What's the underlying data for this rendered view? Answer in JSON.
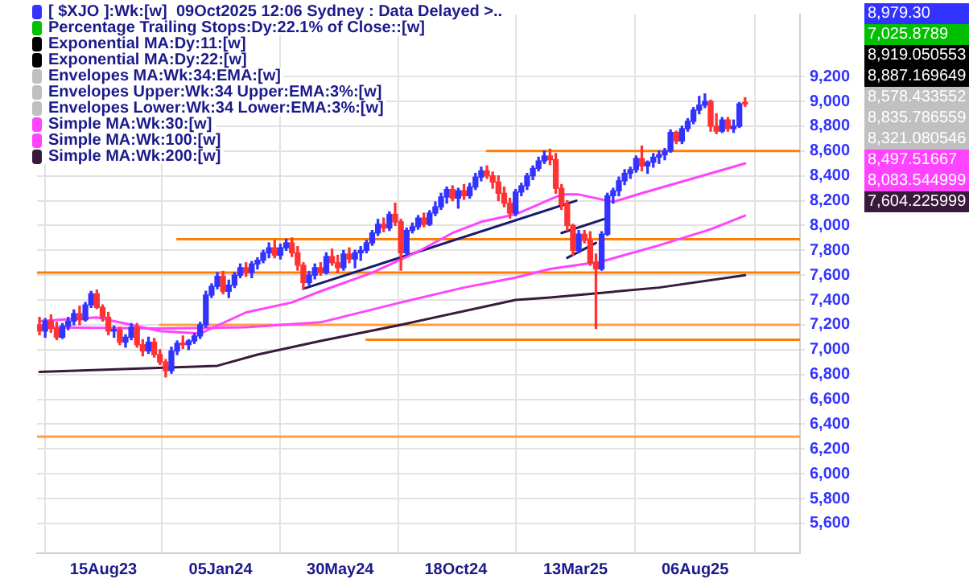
{
  "chart_data": {
    "type": "candlestick",
    "xlim": [
      "2023-05-26",
      "2025-12-12"
    ],
    "xticks": [
      {
        "value": "2023-08-15",
        "label": "15Aug23"
      },
      {
        "value": "2024-01-05",
        "label": "05Jan24"
      },
      {
        "value": "2024-05-30",
        "label": "30May24"
      },
      {
        "value": "2024-10-18",
        "label": "18Oct24"
      },
      {
        "value": "2025-03-13",
        "label": "13Mar25"
      },
      {
        "value": "2025-08-06",
        "label": "06Aug25"
      }
    ],
    "ylim": [
      5360,
      9700
    ],
    "yticks": [
      {
        "value": 5600,
        "label": "5,600"
      },
      {
        "value": 5800,
        "label": "5,800"
      },
      {
        "value": 6000,
        "label": "6,000"
      },
      {
        "value": 6200,
        "label": "6,200"
      },
      {
        "value": 6400,
        "label": "6,400"
      },
      {
        "value": 6600,
        "label": "6,600"
      },
      {
        "value": 6800,
        "label": "6,800"
      },
      {
        "value": 7000,
        "label": "7,000"
      },
      {
        "value": 7200,
        "label": "7,200"
      },
      {
        "value": 7400,
        "label": "7,400"
      },
      {
        "value": 7600,
        "label": "7,600"
      },
      {
        "value": 7800,
        "label": "7,800"
      },
      {
        "value": 8000,
        "label": "8,000"
      },
      {
        "value": 8200,
        "label": "8,200"
      },
      {
        "value": 8400,
        "label": "8,400"
      },
      {
        "value": 8600,
        "label": "8,600"
      },
      {
        "value": 8800,
        "label": "8,800"
      },
      {
        "value": 9000,
        "label": "9,000"
      },
      {
        "value": 9200,
        "label": "9,200"
      }
    ],
    "grid": true,
    "legend": "top left",
    "marker": "none",
    "annotations": [
      "8,979.30",
      "7,025.8789",
      "8,919.050553",
      "8,887.169649",
      "8,578.433552",
      "8,835.786559",
      "8,321.080546",
      "8,497.51667",
      "8,083.544999",
      "7,604.225999"
    ],
    "series": [
      {
        "name": "[ $XJO ]:Wk:[w]  09Oct2025 12:06 Sydney : Data Delayed >..",
        "color": "#3333ff",
        "x": [
          "2023-05-29",
          "2023-06-05",
          "2023-06-12",
          "2023-06-19",
          "2023-06-26",
          "2023-07-03",
          "2023-07-10",
          "2023-07-17",
          "2023-07-24",
          "2023-07-31",
          "2023-08-07",
          "2023-08-14",
          "2023-08-21",
          "2023-08-28",
          "2023-09-04",
          "2023-09-11",
          "2023-09-18",
          "2023-09-25",
          "2023-10-02",
          "2023-10-09",
          "2023-10-16",
          "2023-10-23",
          "2023-10-30",
          "2023-11-06",
          "2023-11-13",
          "2023-11-20",
          "2023-11-27",
          "2023-12-04",
          "2023-12-11",
          "2023-12-18",
          "2023-12-25",
          "2024-01-01",
          "2024-01-08",
          "2024-01-15",
          "2024-01-22",
          "2024-01-29",
          "2024-02-05",
          "2024-02-12",
          "2024-02-19",
          "2024-02-26",
          "2024-03-04",
          "2024-03-11",
          "2024-03-18",
          "2024-03-25",
          "2024-04-01",
          "2024-04-08",
          "2024-04-15",
          "2024-04-22",
          "2024-04-29",
          "2024-05-06",
          "2024-05-13",
          "2024-05-20",
          "2024-05-27",
          "2024-06-03",
          "2024-06-10",
          "2024-06-17",
          "2024-06-24",
          "2024-07-01",
          "2024-07-08",
          "2024-07-15",
          "2024-07-22",
          "2024-07-29",
          "2024-08-05",
          "2024-08-12",
          "2024-08-19",
          "2024-08-26",
          "2024-09-02",
          "2024-09-09",
          "2024-09-16",
          "2024-09-23",
          "2024-09-30",
          "2024-10-07",
          "2024-10-14",
          "2024-10-21",
          "2024-10-28",
          "2024-11-04",
          "2024-11-11",
          "2024-11-18",
          "2024-11-25",
          "2024-12-02",
          "2024-12-09",
          "2024-12-16",
          "2024-12-23",
          "2024-12-30",
          "2025-01-06",
          "2025-01-13",
          "2025-01-20",
          "2025-01-27",
          "2025-02-03",
          "2025-02-10",
          "2025-02-17",
          "2025-02-24",
          "2025-03-03",
          "2025-03-10",
          "2025-03-17",
          "2025-03-24",
          "2025-03-31",
          "2025-04-07",
          "2025-04-14",
          "2025-04-21",
          "2025-04-28",
          "2025-05-05",
          "2025-05-12",
          "2025-05-19",
          "2025-05-26",
          "2025-06-02",
          "2025-06-09",
          "2025-06-16",
          "2025-06-23",
          "2025-06-30",
          "2025-07-07",
          "2025-07-14",
          "2025-07-21",
          "2025-07-28",
          "2025-08-04",
          "2025-08-11",
          "2025-08-18",
          "2025-08-25",
          "2025-09-01",
          "2025-09-08",
          "2025-09-15",
          "2025-09-22",
          "2025-09-29",
          "2025-10-06"
        ],
        "ohlc": [
          [
            7200,
            7260,
            7120,
            7150
          ],
          [
            7150,
            7250,
            7100,
            7230
          ],
          [
            7230,
            7280,
            7140,
            7170
          ],
          [
            7170,
            7220,
            7080,
            7100
          ],
          [
            7100,
            7210,
            7090,
            7190
          ],
          [
            7190,
            7260,
            7160,
            7230
          ],
          [
            7230,
            7320,
            7200,
            7290
          ],
          [
            7290,
            7350,
            7200,
            7240
          ],
          [
            7240,
            7380,
            7230,
            7360
          ],
          [
            7360,
            7470,
            7340,
            7450
          ],
          [
            7450,
            7480,
            7330,
            7340
          ],
          [
            7340,
            7360,
            7230,
            7260
          ],
          [
            7260,
            7300,
            7120,
            7150
          ],
          [
            7150,
            7190,
            7100,
            7160
          ],
          [
            7160,
            7180,
            7040,
            7060
          ],
          [
            7060,
            7120,
            7020,
            7100
          ],
          [
            7100,
            7210,
            7080,
            7180
          ],
          [
            7180,
            7210,
            7020,
            7040
          ],
          [
            7040,
            7080,
            6950,
            6990
          ],
          [
            6990,
            7100,
            6970,
            7060
          ],
          [
            7060,
            7090,
            6940,
            6960
          ],
          [
            6960,
            7000,
            6880,
            6900
          ],
          [
            6900,
            6920,
            6780,
            6830
          ],
          [
            6830,
            7020,
            6810,
            6990
          ],
          [
            6990,
            7070,
            6960,
            7050
          ],
          [
            7050,
            7110,
            7010,
            7040
          ],
          [
            7040,
            7080,
            7000,
            7070
          ],
          [
            7070,
            7130,
            7050,
            7110
          ],
          [
            7110,
            7220,
            7090,
            7200
          ],
          [
            7200,
            7470,
            7180,
            7440
          ],
          [
            7440,
            7530,
            7420,
            7510
          ],
          [
            7510,
            7620,
            7490,
            7590
          ],
          [
            7590,
            7630,
            7450,
            7470
          ],
          [
            7470,
            7560,
            7420,
            7520
          ],
          [
            7520,
            7620,
            7500,
            7600
          ],
          [
            7600,
            7690,
            7580,
            7660
          ],
          [
            7660,
            7700,
            7590,
            7620
          ],
          [
            7620,
            7710,
            7580,
            7690
          ],
          [
            7690,
            7740,
            7650,
            7720
          ],
          [
            7720,
            7800,
            7700,
            7780
          ],
          [
            7780,
            7860,
            7740,
            7820
          ],
          [
            7820,
            7880,
            7740,
            7760
          ],
          [
            7760,
            7850,
            7730,
            7820
          ],
          [
            7820,
            7890,
            7800,
            7860
          ],
          [
            7860,
            7900,
            7750,
            7780
          ],
          [
            7780,
            7830,
            7640,
            7680
          ],
          [
            7680,
            7700,
            7490,
            7540
          ],
          [
            7540,
            7630,
            7520,
            7600
          ],
          [
            7600,
            7690,
            7570,
            7660
          ],
          [
            7660,
            7700,
            7600,
            7620
          ],
          [
            7620,
            7780,
            7610,
            7750
          ],
          [
            7750,
            7810,
            7680,
            7700
          ],
          [
            7700,
            7760,
            7620,
            7660
          ],
          [
            7660,
            7800,
            7640,
            7770
          ],
          [
            7770,
            7820,
            7700,
            7730
          ],
          [
            7730,
            7800,
            7660,
            7780
          ],
          [
            7780,
            7830,
            7720,
            7800
          ],
          [
            7800,
            7880,
            7780,
            7860
          ],
          [
            7860,
            7960,
            7840,
            7940
          ],
          [
            7940,
            8050,
            7920,
            8010
          ],
          [
            8010,
            8060,
            7950,
            7980
          ],
          [
            7980,
            8110,
            7960,
            8090
          ],
          [
            8090,
            8180,
            8000,
            8030
          ],
          [
            8030,
            8050,
            7640,
            7780
          ],
          [
            7780,
            7980,
            7760,
            7960
          ],
          [
            7960,
            8020,
            7940,
            7990
          ],
          [
            7990,
            8080,
            7970,
            8060
          ],
          [
            8060,
            8100,
            7990,
            8010
          ],
          [
            8010,
            8120,
            8000,
            8100
          ],
          [
            8100,
            8190,
            8080,
            8150
          ],
          [
            8150,
            8260,
            8130,
            8230
          ],
          [
            8230,
            8310,
            8180,
            8290
          ],
          [
            8290,
            8320,
            8200,
            8220
          ],
          [
            8220,
            8300,
            8140,
            8280
          ],
          [
            8280,
            8330,
            8210,
            8240
          ],
          [
            8240,
            8340,
            8220,
            8310
          ],
          [
            8310,
            8420,
            8290,
            8390
          ],
          [
            8390,
            8470,
            8360,
            8440
          ],
          [
            8440,
            8480,
            8380,
            8400
          ],
          [
            8400,
            8430,
            8300,
            8350
          ],
          [
            8350,
            8400,
            8200,
            8260
          ],
          [
            8260,
            8310,
            8150,
            8180
          ],
          [
            8180,
            8220,
            8060,
            8100
          ],
          [
            8100,
            8290,
            8080,
            8270
          ],
          [
            8270,
            8340,
            8240,
            8320
          ],
          [
            8320,
            8420,
            8290,
            8400
          ],
          [
            8400,
            8480,
            8370,
            8460
          ],
          [
            8460,
            8550,
            8440,
            8520
          ],
          [
            8520,
            8600,
            8500,
            8560
          ],
          [
            8560,
            8615,
            8490,
            8530
          ],
          [
            8530,
            8580,
            8260,
            8300
          ],
          [
            8300,
            8330,
            8130,
            8170
          ],
          [
            8170,
            8200,
            7960,
            8000
          ],
          [
            8000,
            8010,
            7760,
            7800
          ],
          [
            7800,
            7960,
            7780,
            7930
          ],
          [
            7930,
            7960,
            7860,
            7880
          ],
          [
            7880,
            7950,
            7680,
            7700
          ],
          [
            7700,
            7770,
            7170,
            7650
          ],
          [
            7650,
            7950,
            7640,
            7930
          ],
          [
            7930,
            8260,
            7920,
            8240
          ],
          [
            8240,
            8300,
            8180,
            8280
          ],
          [
            8280,
            8390,
            8240,
            8360
          ],
          [
            8360,
            8450,
            8330,
            8420
          ],
          [
            8420,
            8470,
            8380,
            8450
          ],
          [
            8450,
            8560,
            8430,
            8540
          ],
          [
            8540,
            8640,
            8440,
            8480
          ],
          [
            8480,
            8520,
            8420,
            8510
          ],
          [
            8510,
            8580,
            8470,
            8550
          ],
          [
            8550,
            8600,
            8500,
            8570
          ],
          [
            8570,
            8620,
            8530,
            8600
          ],
          [
            8600,
            8770,
            8590,
            8750
          ],
          [
            8750,
            8760,
            8660,
            8680
          ],
          [
            8680,
            8800,
            8660,
            8780
          ],
          [
            8780,
            8860,
            8760,
            8840
          ],
          [
            8840,
            8950,
            8820,
            8930
          ],
          [
            8930,
            9040,
            8900,
            8970
          ],
          [
            8970,
            9060,
            8950,
            9000
          ],
          [
            9000,
            9010,
            8760,
            8800
          ],
          [
            8800,
            8900,
            8740,
            8760
          ],
          [
            8760,
            8870,
            8750,
            8850
          ],
          [
            8850,
            8870,
            8760,
            8780
          ],
          [
            8780,
            8850,
            8750,
            8800
          ],
          [
            8800,
            8990,
            8790,
            8980
          ],
          [
            8980,
            9030,
            8960,
            8979.3
          ]
        ],
        "colors": [
          "#ff3333",
          "#3333ff",
          "#ff3333",
          "#ff3333",
          "#3333ff",
          "#3333ff",
          "#3333ff",
          "#ff3333",
          "#3333ff",
          "#3333ff",
          "#ff3333",
          "#ff3333",
          "#ff3333",
          "#3333ff",
          "#ff3333",
          "#3333ff",
          "#3333ff",
          "#ff3333",
          "#ff3333",
          "#3333ff",
          "#ff3333",
          "#ff3333",
          "#ff3333",
          "#3333ff",
          "#3333ff",
          "#ff3333",
          "#3333ff",
          "#3333ff",
          "#3333ff",
          "#3333ff",
          "#3333ff",
          "#3333ff",
          "#ff3333",
          "#3333ff",
          "#3333ff",
          "#3333ff",
          "#ff3333",
          "#3333ff",
          "#3333ff",
          "#3333ff",
          "#3333ff",
          "#ff3333",
          "#3333ff",
          "#3333ff",
          "#ff3333",
          "#ff3333",
          "#ff3333",
          "#3333ff",
          "#3333ff",
          "#ff3333",
          "#3333ff",
          "#ff3333",
          "#ff3333",
          "#3333ff",
          "#ff3333",
          "#3333ff",
          "#3333ff",
          "#3333ff",
          "#3333ff",
          "#3333ff",
          "#ff3333",
          "#3333ff",
          "#ff3333",
          "#ff3333",
          "#3333ff",
          "#3333ff",
          "#3333ff",
          "#ff3333",
          "#3333ff",
          "#3333ff",
          "#3333ff",
          "#3333ff",
          "#ff3333",
          "#3333ff",
          "#ff3333",
          "#3333ff",
          "#3333ff",
          "#3333ff",
          "#ff3333",
          "#ff3333",
          "#ff3333",
          "#ff3333",
          "#ff3333",
          "#3333ff",
          "#3333ff",
          "#3333ff",
          "#3333ff",
          "#3333ff",
          "#3333ff",
          "#ff3333",
          "#ff3333",
          "#ff3333",
          "#ff3333",
          "#ff3333",
          "#3333ff",
          "#ff3333",
          "#ff3333",
          "#ff3333",
          "#3333ff",
          "#3333ff",
          "#3333ff",
          "#3333ff",
          "#3333ff",
          "#3333ff",
          "#3333ff",
          "#ff3333",
          "#3333ff",
          "#3333ff",
          "#3333ff",
          "#3333ff",
          "#3333ff",
          "#ff3333",
          "#3333ff",
          "#3333ff",
          "#3333ff",
          "#3333ff",
          "#3333ff",
          "#ff3333",
          "#ff3333",
          "#3333ff",
          "#ff3333",
          "#3333ff",
          "#3333ff",
          "#ff3333"
        ]
      },
      {
        "name": "Percentage Trailing Stops:Dy:22.1% of Close::[w]",
        "type": "line",
        "color": "#00c000"
      },
      {
        "name": "Exponential MA:Dy:11:[w]",
        "type": "line",
        "color": "#000000"
      },
      {
        "name": "Exponential MA:Dy:22:[w]",
        "type": "line",
        "color": "#000000"
      },
      {
        "name": "Envelopes MA:Wk:34:EMA:[w]",
        "type": "line",
        "color": "#c0c0c0"
      },
      {
        "name": "Envelopes Upper:Wk:34 Upper:EMA:3%:[w]",
        "type": "line",
        "color": "#c0c0c0"
      },
      {
        "name": "Envelopes Lower:Wk:34 Lower:EMA:3%:[w]",
        "type": "line",
        "color": "#c0c0c0"
      },
      {
        "name": "Simple MA:Wk:30:[w]",
        "type": "line",
        "color": "#ff44ff",
        "x": [
          "2023-05-29",
          "2023-08-07",
          "2023-10-23",
          "2023-12-11",
          "2024-02-05",
          "2024-04-01",
          "2024-05-06",
          "2024-07-08",
          "2024-09-02",
          "2024-10-14",
          "2024-11-18",
          "2024-12-30",
          "2025-02-24",
          "2025-03-17",
          "2025-04-28",
          "2025-06-02",
          "2025-08-04",
          "2025-10-06"
        ],
        "values": [
          7230,
          7260,
          7150,
          7130,
          7300,
          7380,
          7470,
          7620,
          7790,
          7940,
          8030,
          8090,
          8250,
          8250,
          8190,
          8260,
          8380,
          8500
        ]
      },
      {
        "name": "Simple MA:Wk:100:[w]",
        "type": "line",
        "color": "#ff44ff",
        "x": [
          "2023-05-29",
          "2023-10-23",
          "2024-02-05",
          "2024-05-06",
          "2024-08-12",
          "2024-10-28",
          "2024-12-30",
          "2025-02-10",
          "2025-04-14",
          "2025-06-23",
          "2025-08-25",
          "2025-10-06"
        ],
        "values": [
          7180,
          7170,
          7180,
          7220,
          7380,
          7500,
          7580,
          7650,
          7710,
          7840,
          7970,
          8080
        ]
      },
      {
        "name": "Simple MA:Wk:200:[w]",
        "type": "line",
        "color": "#3a1a3a",
        "x": [
          "2023-05-29",
          "2024-01-01",
          "2024-02-19",
          "2024-05-06",
          "2024-08-12",
          "2024-12-30",
          "2025-02-10",
          "2025-06-23",
          "2025-10-06"
        ],
        "values": [
          6820,
          6870,
          6960,
          7070,
          7200,
          7400,
          7420,
          7500,
          7600
        ]
      },
      {
        "type": "line",
        "color": "#1a1a6e",
        "x": [
          "2024-04-15",
          "2025-03-14"
        ],
        "values": [
          7490,
          8200
        ]
      },
      {
        "type": "line",
        "color": "#1a1a6e",
        "x": [
          "2025-02-24",
          "2025-04-21"
        ],
        "values": [
          7940,
          8060
        ]
      },
      {
        "type": "line",
        "color": "#1a1a6e",
        "x": [
          "2025-03-03",
          "2025-04-07"
        ],
        "values": [
          7740,
          7860
        ]
      },
      {
        "type": "line",
        "color": "#ff8000",
        "x": [
          "2024-11-25",
          "2025-12-12"
        ],
        "values": [
          8600,
          8600
        ]
      },
      {
        "type": "line",
        "color": "#ff8000",
        "x": [
          "2023-11-13",
          "2025-12-12"
        ],
        "values": [
          7890,
          7890
        ]
      },
      {
        "type": "line",
        "color": "#ff8000",
        "x": [
          "2023-05-26",
          "2025-12-12"
        ],
        "values": [
          7620,
          7620
        ]
      },
      {
        "type": "line",
        "color": "#ffa040",
        "x": [
          "2023-10-23",
          "2025-12-12"
        ],
        "values": [
          7200,
          7200
        ]
      },
      {
        "type": "line",
        "color": "#ff8000",
        "x": [
          "2024-07-01",
          "2025-12-12"
        ],
        "values": [
          7080,
          7080
        ]
      },
      {
        "type": "line",
        "color": "#ffa040",
        "x": [
          "2023-05-26",
          "2025-12-12"
        ],
        "values": [
          6300,
          6300
        ]
      }
    ]
  }
}
